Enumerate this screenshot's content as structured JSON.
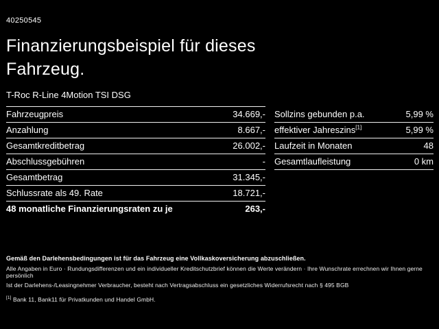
{
  "header": {
    "doc_id": "40250545",
    "title": "Finanzierungsbeispiel für dieses Fahrzeug.",
    "vehicle": "T-Roc R-Line 4Motion TSI DSG"
  },
  "left_table": {
    "rows": [
      {
        "label": "Fahrzeugpreis",
        "value": "34.669,-"
      },
      {
        "label": "Anzahlung",
        "value": "8.667,-"
      },
      {
        "label": "Gesamtkreditbetrag",
        "value": "26.002,-"
      },
      {
        "label": "Abschlussgebühren",
        "value": "-"
      },
      {
        "label": "Gesamtbetrag",
        "value": "31.345,-"
      },
      {
        "label": "Schlussrate als 49. Rate",
        "value": "18.721,-"
      },
      {
        "label": "48 monatliche Finanzierungsraten zu je",
        "value": "263,-"
      }
    ]
  },
  "right_table": {
    "rows": [
      {
        "label": "Sollzins gebunden p.a.",
        "value": "5,99 %"
      },
      {
        "label": "effektiver Jahreszins",
        "marker": "[1]",
        "value": "5,99 %"
      },
      {
        "label": "Laufzeit in Monaten",
        "value": "48"
      },
      {
        "label": "Gesamtlaufleistung",
        "value": "0 km"
      }
    ]
  },
  "footer": {
    "line1": "Gemäß den Darlehensbedingungen ist für das Fahrzeug eine Vollkaskoversicherung abzuschließen.",
    "line2": "Alle Angaben in Euro · Rundungsdifferenzen und ein individueller Kreditschutzbrief können die Werte verändern · Ihre Wunschrate errechnen wir Ihnen gerne persönlich",
    "line3": "Ist der Darlehens-/Leasingnehmer Verbraucher, besteht nach Vertragsabschluss ein gesetzliches Widerrufsrecht nach § 495 BGB",
    "footnote_marker": "[1]",
    "footnote_text": "Bank 11, Bank11 für Privatkunden und Handel GmbH."
  },
  "colors": {
    "background": "#000000",
    "text": "#ffffff",
    "divider": "#f2f2f2"
  }
}
